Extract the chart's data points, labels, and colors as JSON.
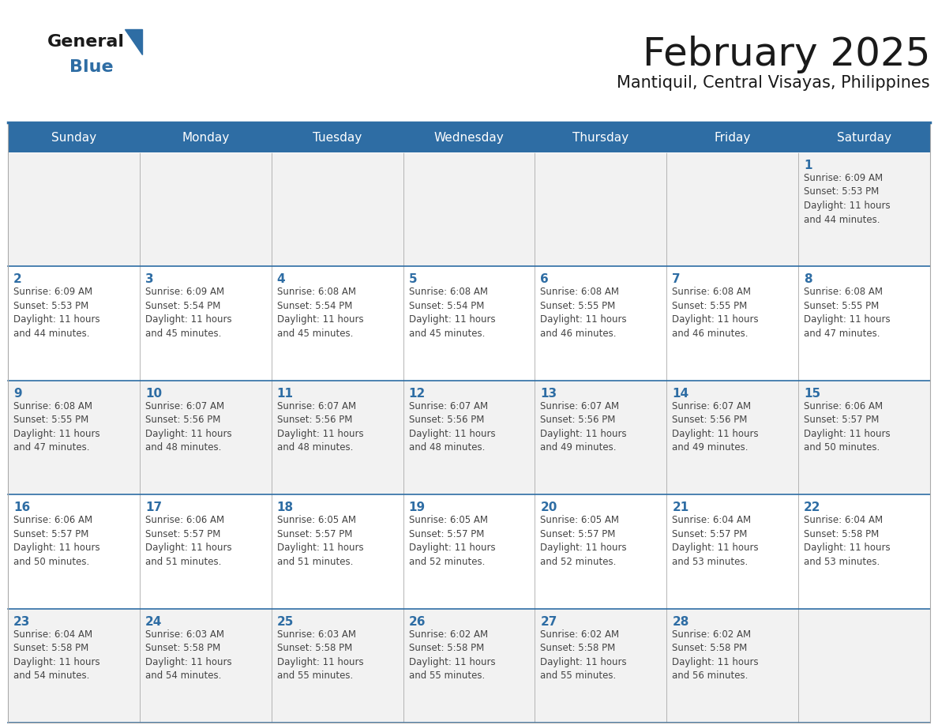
{
  "title": "February 2025",
  "subtitle": "Mantiquil, Central Visayas, Philippines",
  "header_bg": "#2E6DA4",
  "header_text_color": "#FFFFFF",
  "cell_bg_odd": "#F2F2F2",
  "cell_bg_even": "#FFFFFF",
  "day_number_color": "#2E6DA4",
  "cell_text_color": "#444444",
  "row_separator_color": "#2E6DA4",
  "col_separator_color": "#CCCCCC",
  "days_of_week": [
    "Sunday",
    "Monday",
    "Tuesday",
    "Wednesday",
    "Thursday",
    "Friday",
    "Saturday"
  ],
  "weeks": [
    [
      {
        "day": null,
        "info": ""
      },
      {
        "day": null,
        "info": ""
      },
      {
        "day": null,
        "info": ""
      },
      {
        "day": null,
        "info": ""
      },
      {
        "day": null,
        "info": ""
      },
      {
        "day": null,
        "info": ""
      },
      {
        "day": 1,
        "info": "Sunrise: 6:09 AM\nSunset: 5:53 PM\nDaylight: 11 hours\nand 44 minutes."
      }
    ],
    [
      {
        "day": 2,
        "info": "Sunrise: 6:09 AM\nSunset: 5:53 PM\nDaylight: 11 hours\nand 44 minutes."
      },
      {
        "day": 3,
        "info": "Sunrise: 6:09 AM\nSunset: 5:54 PM\nDaylight: 11 hours\nand 45 minutes."
      },
      {
        "day": 4,
        "info": "Sunrise: 6:08 AM\nSunset: 5:54 PM\nDaylight: 11 hours\nand 45 minutes."
      },
      {
        "day": 5,
        "info": "Sunrise: 6:08 AM\nSunset: 5:54 PM\nDaylight: 11 hours\nand 45 minutes."
      },
      {
        "day": 6,
        "info": "Sunrise: 6:08 AM\nSunset: 5:55 PM\nDaylight: 11 hours\nand 46 minutes."
      },
      {
        "day": 7,
        "info": "Sunrise: 6:08 AM\nSunset: 5:55 PM\nDaylight: 11 hours\nand 46 minutes."
      },
      {
        "day": 8,
        "info": "Sunrise: 6:08 AM\nSunset: 5:55 PM\nDaylight: 11 hours\nand 47 minutes."
      }
    ],
    [
      {
        "day": 9,
        "info": "Sunrise: 6:08 AM\nSunset: 5:55 PM\nDaylight: 11 hours\nand 47 minutes."
      },
      {
        "day": 10,
        "info": "Sunrise: 6:07 AM\nSunset: 5:56 PM\nDaylight: 11 hours\nand 48 minutes."
      },
      {
        "day": 11,
        "info": "Sunrise: 6:07 AM\nSunset: 5:56 PM\nDaylight: 11 hours\nand 48 minutes."
      },
      {
        "day": 12,
        "info": "Sunrise: 6:07 AM\nSunset: 5:56 PM\nDaylight: 11 hours\nand 48 minutes."
      },
      {
        "day": 13,
        "info": "Sunrise: 6:07 AM\nSunset: 5:56 PM\nDaylight: 11 hours\nand 49 minutes."
      },
      {
        "day": 14,
        "info": "Sunrise: 6:07 AM\nSunset: 5:56 PM\nDaylight: 11 hours\nand 49 minutes."
      },
      {
        "day": 15,
        "info": "Sunrise: 6:06 AM\nSunset: 5:57 PM\nDaylight: 11 hours\nand 50 minutes."
      }
    ],
    [
      {
        "day": 16,
        "info": "Sunrise: 6:06 AM\nSunset: 5:57 PM\nDaylight: 11 hours\nand 50 minutes."
      },
      {
        "day": 17,
        "info": "Sunrise: 6:06 AM\nSunset: 5:57 PM\nDaylight: 11 hours\nand 51 minutes."
      },
      {
        "day": 18,
        "info": "Sunrise: 6:05 AM\nSunset: 5:57 PM\nDaylight: 11 hours\nand 51 minutes."
      },
      {
        "day": 19,
        "info": "Sunrise: 6:05 AM\nSunset: 5:57 PM\nDaylight: 11 hours\nand 52 minutes."
      },
      {
        "day": 20,
        "info": "Sunrise: 6:05 AM\nSunset: 5:57 PM\nDaylight: 11 hours\nand 52 minutes."
      },
      {
        "day": 21,
        "info": "Sunrise: 6:04 AM\nSunset: 5:57 PM\nDaylight: 11 hours\nand 53 minutes."
      },
      {
        "day": 22,
        "info": "Sunrise: 6:04 AM\nSunset: 5:58 PM\nDaylight: 11 hours\nand 53 minutes."
      }
    ],
    [
      {
        "day": 23,
        "info": "Sunrise: 6:04 AM\nSunset: 5:58 PM\nDaylight: 11 hours\nand 54 minutes."
      },
      {
        "day": 24,
        "info": "Sunrise: 6:03 AM\nSunset: 5:58 PM\nDaylight: 11 hours\nand 54 minutes."
      },
      {
        "day": 25,
        "info": "Sunrise: 6:03 AM\nSunset: 5:58 PM\nDaylight: 11 hours\nand 55 minutes."
      },
      {
        "day": 26,
        "info": "Sunrise: 6:02 AM\nSunset: 5:58 PM\nDaylight: 11 hours\nand 55 minutes."
      },
      {
        "day": 27,
        "info": "Sunrise: 6:02 AM\nSunset: 5:58 PM\nDaylight: 11 hours\nand 55 minutes."
      },
      {
        "day": 28,
        "info": "Sunrise: 6:02 AM\nSunset: 5:58 PM\nDaylight: 11 hours\nand 56 minutes."
      },
      {
        "day": null,
        "info": ""
      }
    ]
  ],
  "logo_text_general": "General",
  "logo_text_blue": "Blue",
  "logo_color_general": "#1a1a1a",
  "logo_color_blue": "#2E6DA4",
  "logo_triangle_color": "#2E6DA4"
}
